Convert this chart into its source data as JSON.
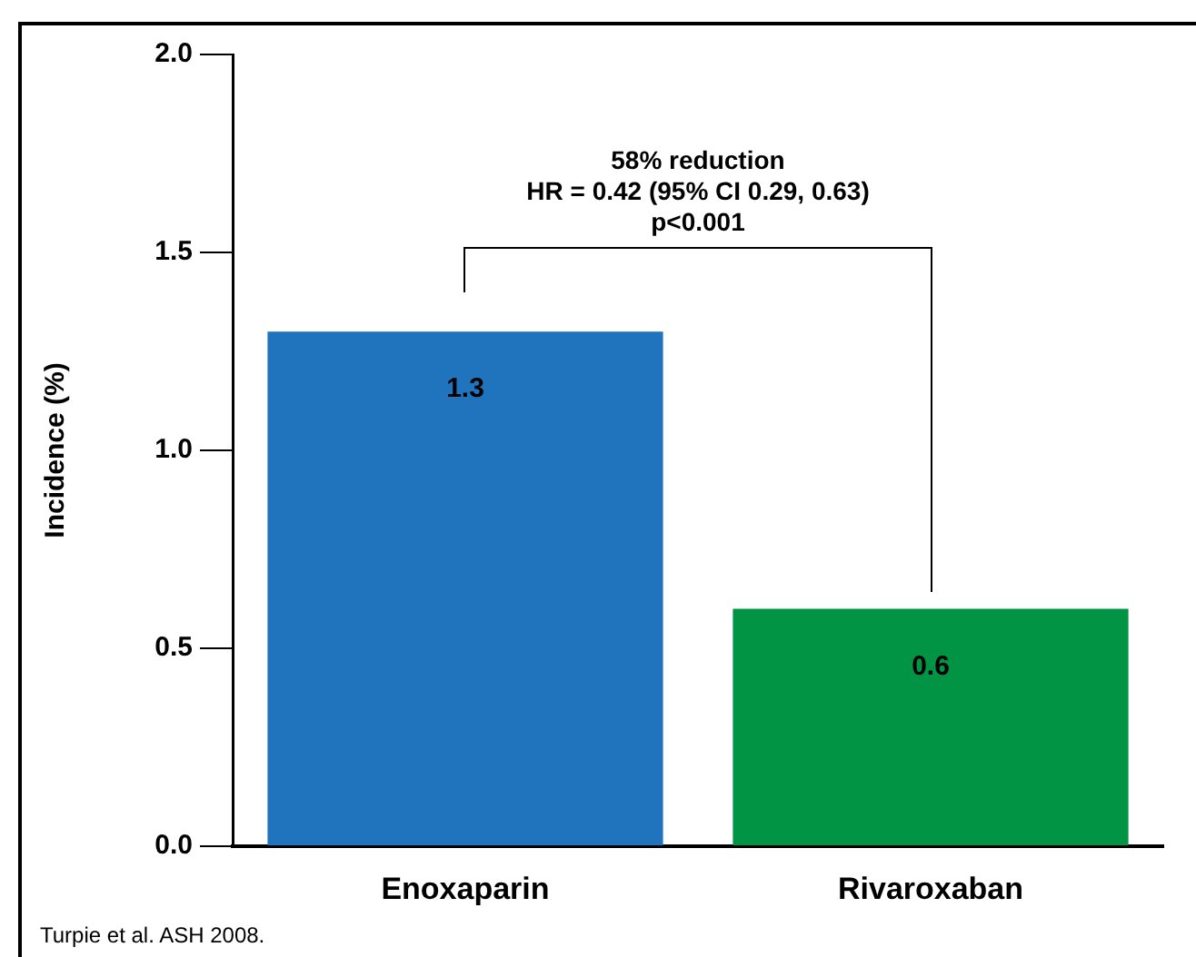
{
  "chart_data": {
    "type": "bar",
    "ylabel": "Incidence (%)",
    "categories": [
      "Enoxaparin",
      "Rivaroxaban"
    ],
    "values": [
      1.3,
      0.6
    ],
    "colors": [
      "#1f74bd",
      "#009444"
    ],
    "ylim": [
      0,
      2
    ],
    "yticks": [
      {
        "value": 0,
        "label": "0.0"
      },
      {
        "value": 0.5,
        "label": "0.5"
      },
      {
        "value": 1,
        "label": "1.0"
      },
      {
        "value": 1.5,
        "label": "1.5"
      },
      {
        "value": 2,
        "label": "2.0"
      }
    ],
    "data_labels": true,
    "grid": false,
    "legend": false,
    "annotations": [
      "58% reduction",
      "HR = 0.42 (95% CI 0.29, 0.63)",
      "p<0.001",
      "Turpie et al. ASH 2008."
    ]
  }
}
